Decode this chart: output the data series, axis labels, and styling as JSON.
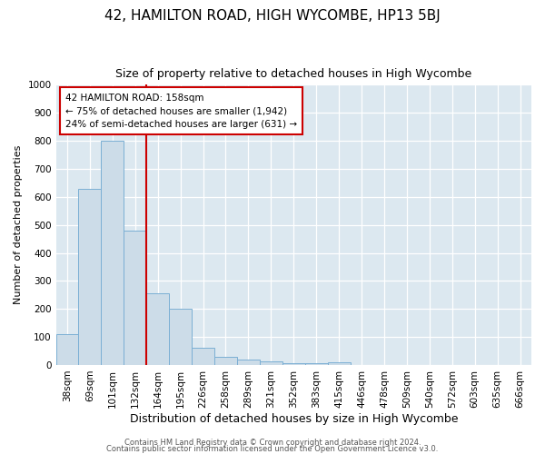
{
  "title": "42, HAMILTON ROAD, HIGH WYCOMBE, HP13 5BJ",
  "subtitle": "Size of property relative to detached houses in High Wycombe",
  "xlabel": "Distribution of detached houses by size in High Wycombe",
  "ylabel": "Number of detached properties",
  "categories": [
    "38sqm",
    "69sqm",
    "101sqm",
    "132sqm",
    "164sqm",
    "195sqm",
    "226sqm",
    "258sqm",
    "289sqm",
    "321sqm",
    "352sqm",
    "383sqm",
    "415sqm",
    "446sqm",
    "478sqm",
    "509sqm",
    "540sqm",
    "572sqm",
    "603sqm",
    "635sqm",
    "666sqm"
  ],
  "values": [
    110,
    630,
    800,
    480,
    255,
    200,
    63,
    28,
    18,
    12,
    6,
    6,
    10,
    0,
    0,
    0,
    0,
    0,
    0,
    0,
    0
  ],
  "bar_color": "#ccdce8",
  "bar_edge_color": "#7bafd4",
  "background_color": "#dce8f0",
  "fig_background": "#ffffff",
  "red_line_index": 4,
  "ylim": [
    0,
    1000
  ],
  "annotation_title": "42 HAMILTON ROAD: 158sqm",
  "annotation_line1": "← 75% of detached houses are smaller (1,942)",
  "annotation_line2": "24% of semi-detached houses are larger (631) →",
  "footer_line1": "Contains HM Land Registry data © Crown copyright and database right 2024.",
  "footer_line2": "Contains public sector information licensed under the Open Government Licence v3.0.",
  "title_fontsize": 11,
  "subtitle_fontsize": 9,
  "xlabel_fontsize": 9,
  "ylabel_fontsize": 8,
  "tick_fontsize": 7.5,
  "footer_fontsize": 6
}
